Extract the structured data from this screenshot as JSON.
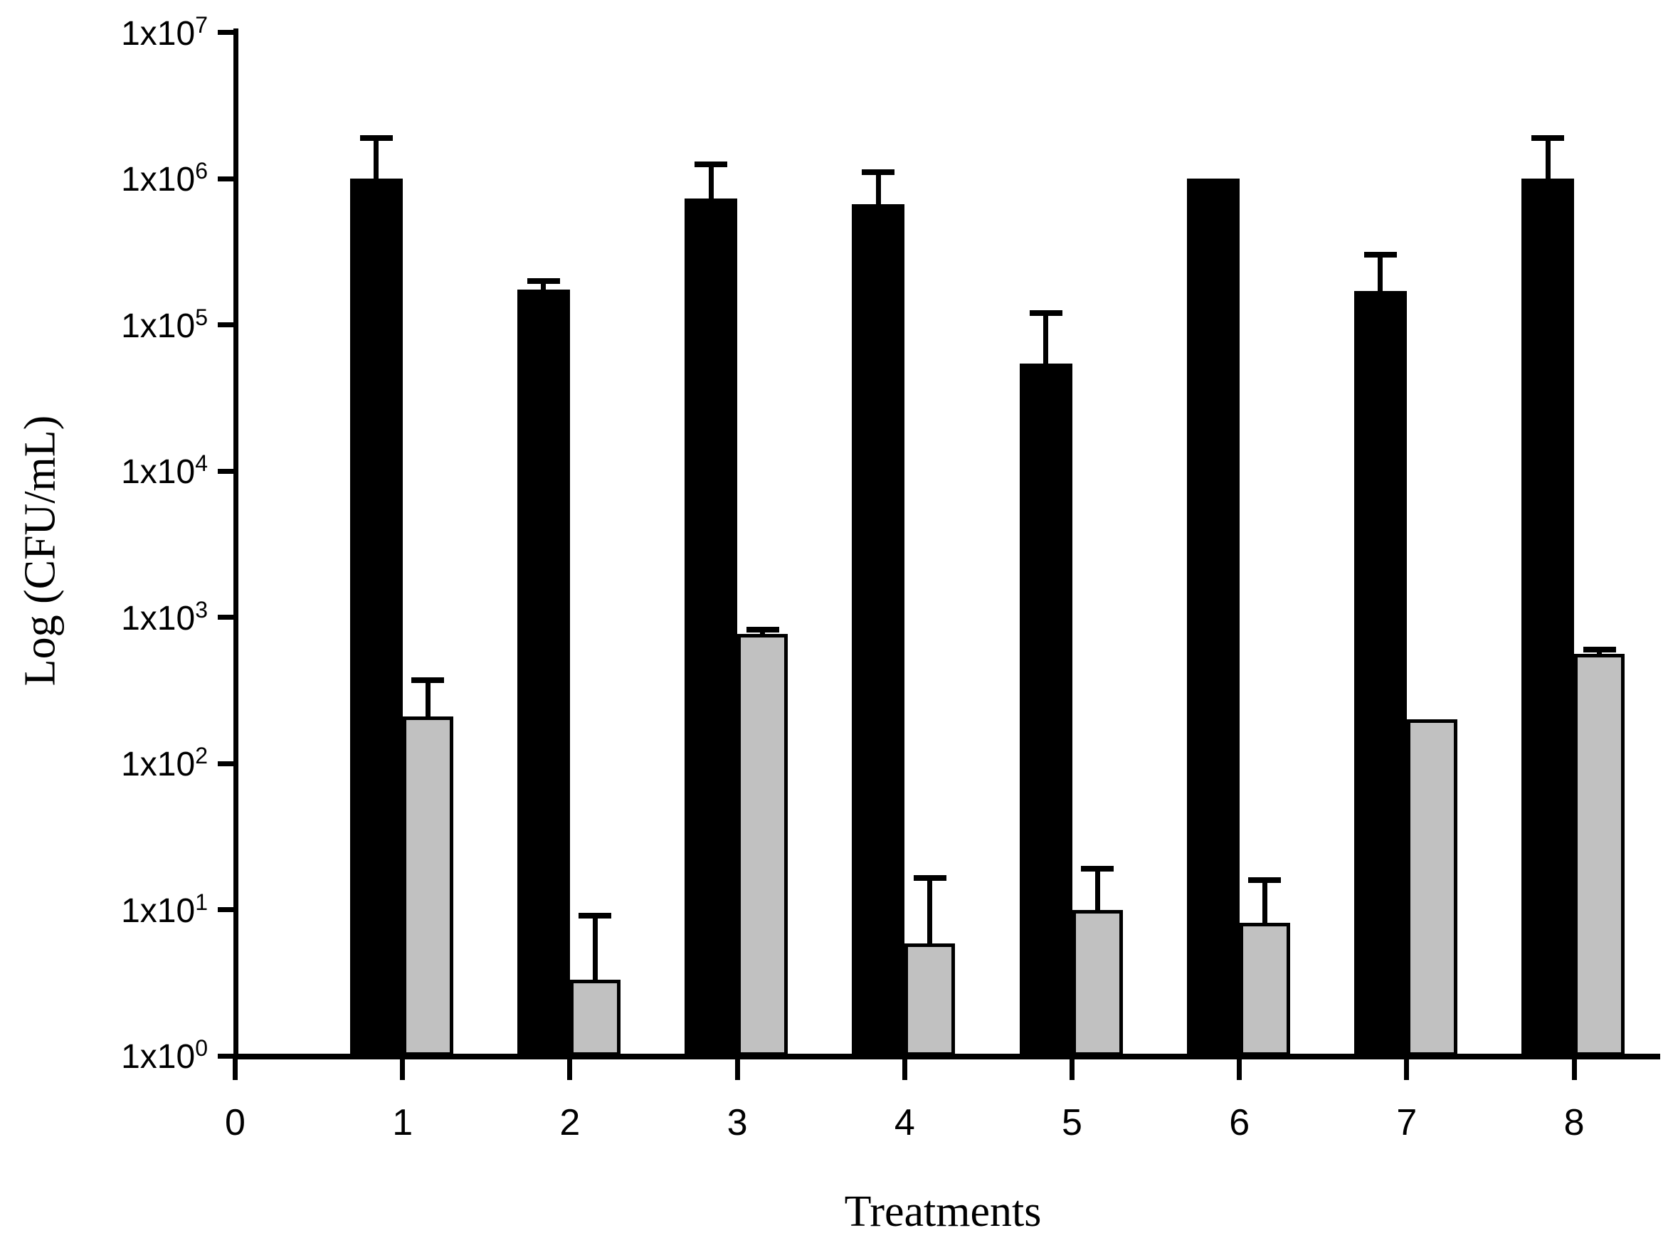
{
  "chart_data": {
    "type": "bar",
    "title": "",
    "xlabel": "Treatments",
    "ylabel": "Log (CFU/mL)",
    "x_tick_labels": [
      "0",
      "1",
      "2",
      "3",
      "4",
      "5",
      "6",
      "7",
      "8"
    ],
    "y_scale": "log10",
    "ylim": [
      1,
      10000000
    ],
    "y_tick_label_prefix": "1x10",
    "y_tick_exponents": [
      0,
      1,
      2,
      3,
      4,
      5,
      6,
      7
    ],
    "categories": [
      "1",
      "2",
      "3",
      "4",
      "5",
      "6",
      "7",
      "8"
    ],
    "series": [
      {
        "name": "black-bars",
        "color": "#000000",
        "values": [
          1000000,
          175000,
          730000,
          670000,
          54000,
          1000000,
          170000,
          1000000
        ],
        "error_top": [
          1900000,
          200000,
          1250000,
          1100000,
          120000,
          null,
          300000,
          1900000
        ]
      },
      {
        "name": "gray-bars",
        "color": "#c1c1c1",
        "values": [
          210,
          3.3,
          770,
          5.9,
          10,
          8.1,
          200,
          560
        ],
        "error_top": [
          370,
          9.1,
          820,
          16.5,
          19,
          16,
          null,
          600
        ]
      }
    ],
    "legend": null,
    "grid": false
  }
}
